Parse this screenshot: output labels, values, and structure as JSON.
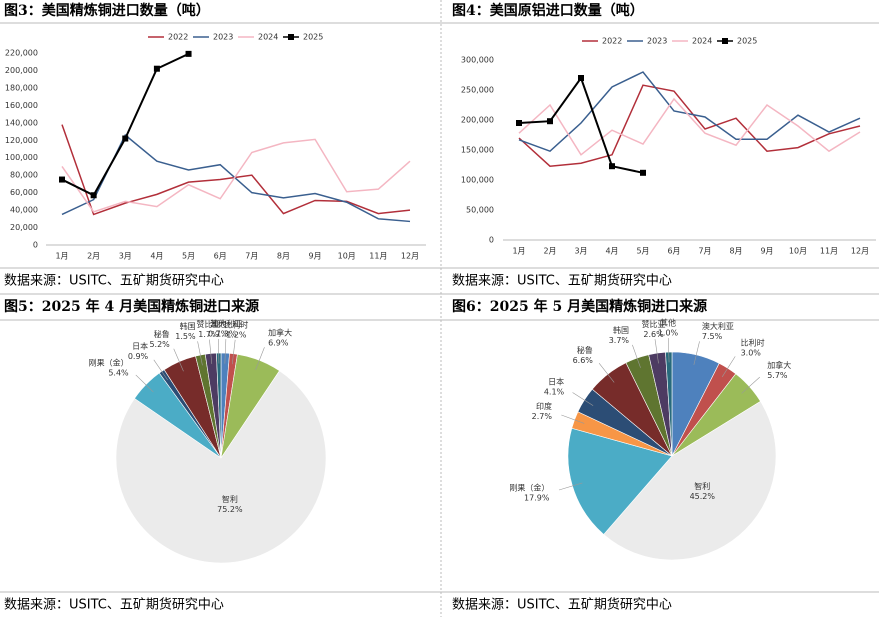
{
  "chart_data": [
    {
      "type": "line",
      "title": "图3：美国精炼铜进口数量（吨）",
      "source": "数据来源：USITC、五矿期货研究中心",
      "categories": [
        "1月",
        "2月",
        "3月",
        "4月",
        "5月",
        "6月",
        "7月",
        "8月",
        "9月",
        "10月",
        "11月",
        "12月"
      ],
      "series": [
        {
          "name": "2022",
          "color": "#b22f3a",
          "values": [
            138000,
            35000,
            48000,
            58000,
            72000,
            75000,
            80000,
            36000,
            51000,
            50000,
            36000,
            40000
          ]
        },
        {
          "name": "2023",
          "color": "#3a5f8f",
          "values": [
            35000,
            52000,
            126000,
            96000,
            86000,
            92000,
            60000,
            54000,
            59000,
            49000,
            30000,
            27000
          ]
        },
        {
          "name": "2024",
          "color": "#f4b6c2",
          "values": [
            90000,
            38000,
            50000,
            44000,
            69000,
            53000,
            106000,
            117000,
            121000,
            61000,
            64000,
            96000
          ]
        },
        {
          "name": "2025",
          "color": "#000000",
          "marker": "square",
          "values": [
            75000,
            57000,
            122000,
            202000,
            219000,
            null,
            null,
            null,
            null,
            null,
            null,
            null
          ]
        }
      ],
      "ylim": [
        0,
        220000
      ],
      "yticks": [
        0,
        {
          "value": 20000,
          "label": "20,000"
        },
        {
          "value": 40000,
          "label": "40,000"
        },
        {
          "value": 60000,
          "label": "60,000"
        },
        {
          "value": 80000,
          "label": "80,000"
        },
        {
          "value": 100000,
          "label": "100,000"
        },
        {
          "value": 120000,
          "label": "120,000"
        },
        {
          "value": 140000,
          "label": "140,000"
        },
        {
          "value": 160000,
          "label": "160,000"
        },
        {
          "value": 180000,
          "label": "180,000"
        },
        {
          "value": 200000,
          "label": "200,000"
        },
        {
          "value": 220000,
          "label": "220,000"
        }
      ],
      "grid": false
    },
    {
      "type": "line",
      "title": "图4：美国原铝进口数量（吨）",
      "source": "数据来源：USITC、五矿期货研究中心",
      "categories": [
        "1月",
        "2月",
        "3月",
        "4月",
        "5月",
        "6月",
        "7月",
        "8月",
        "9月",
        "10月",
        "11月",
        "12月"
      ],
      "series": [
        {
          "name": "2022",
          "color": "#b22f3a",
          "values": [
            170000,
            123000,
            128000,
            142000,
            258000,
            248000,
            185000,
            203000,
            148000,
            154000,
            177000,
            190000
          ]
        },
        {
          "name": "2023",
          "color": "#3a5f8f",
          "values": [
            167000,
            148000,
            195000,
            255000,
            280000,
            215000,
            205000,
            168000,
            168000,
            208000,
            180000,
            203000
          ]
        },
        {
          "name": "2024",
          "color": "#f4b6c2",
          "values": [
            178000,
            225000,
            142000,
            183000,
            160000,
            235000,
            178000,
            158000,
            225000,
            190000,
            148000,
            180000
          ]
        },
        {
          "name": "2025",
          "color": "#000000",
          "marker": "square",
          "values": [
            195000,
            198000,
            270000,
            123000,
            112000,
            null,
            null,
            null,
            null,
            null,
            null,
            null
          ]
        }
      ],
      "ylim": [
        0,
        300000
      ],
      "yticks": [
        0,
        {
          "value": 50000,
          "label": "50,000"
        },
        {
          "value": 100000,
          "label": "100,000"
        },
        {
          "value": 150000,
          "label": "150,000"
        },
        {
          "value": 200000,
          "label": "200,000"
        },
        {
          "value": 250000,
          "label": "250,000"
        },
        {
          "value": 300000,
          "label": "300,000"
        }
      ],
      "grid": false
    },
    {
      "type": "pie",
      "title": "图5：2025 年 4 月美国精炼铜进口来源",
      "source": "数据来源：USITC、五矿期货研究中心",
      "categories": [
        "澳大利亚",
        "比利时",
        "加拿大",
        "智利",
        "刚果（金）",
        "日本",
        "秘鲁",
        "韩国",
        "赞比亚",
        "其他"
      ],
      "values": [
        1.3,
        1.2,
        6.9,
        75.2,
        5.4,
        0.9,
        5.2,
        1.5,
        1.7,
        0.7
      ],
      "value_labels": [
        "1.3%",
        "1.2%",
        "6.9%",
        "75.2%",
        "5.4%",
        "0.9%",
        "5.2%",
        "1.5%",
        "1.7%",
        "0.7%"
      ],
      "colors": [
        "#4e81bd",
        "#c0504d",
        "#9bbb59",
        "#ebebeb",
        "#4bacc6",
        "#2c4d75",
        "#772c2a",
        "#5f7530",
        "#4d3b62",
        "#276a7c"
      ]
    },
    {
      "type": "pie",
      "title": "图6：2025 年 5 月美国精炼铜进口来源",
      "source": "数据来源：USITC、五矿期货研究中心",
      "categories": [
        "澳大利亚",
        "比利时",
        "加拿大",
        "智利",
        "刚果（金）",
        "印度",
        "日本",
        "秘鲁",
        "韩国",
        "赞比亚",
        "其他"
      ],
      "values": [
        7.5,
        3.0,
        5.7,
        45.2,
        17.9,
        2.7,
        4.1,
        6.6,
        3.7,
        2.6,
        1.0
      ],
      "value_labels": [
        "7.5%",
        "3.0%",
        "5.7%",
        "45.2%",
        "17.9%",
        "2.7%",
        "4.1%",
        "6.6%",
        "3.7%",
        "2.6%",
        "1.0%"
      ],
      "colors": [
        "#4e81bd",
        "#c0504d",
        "#9bbb59",
        "#ebebeb",
        "#4bacc6",
        "#f79646",
        "#2c4d75",
        "#772c2a",
        "#5f7530",
        "#4d3b62",
        "#276a7c"
      ]
    }
  ]
}
